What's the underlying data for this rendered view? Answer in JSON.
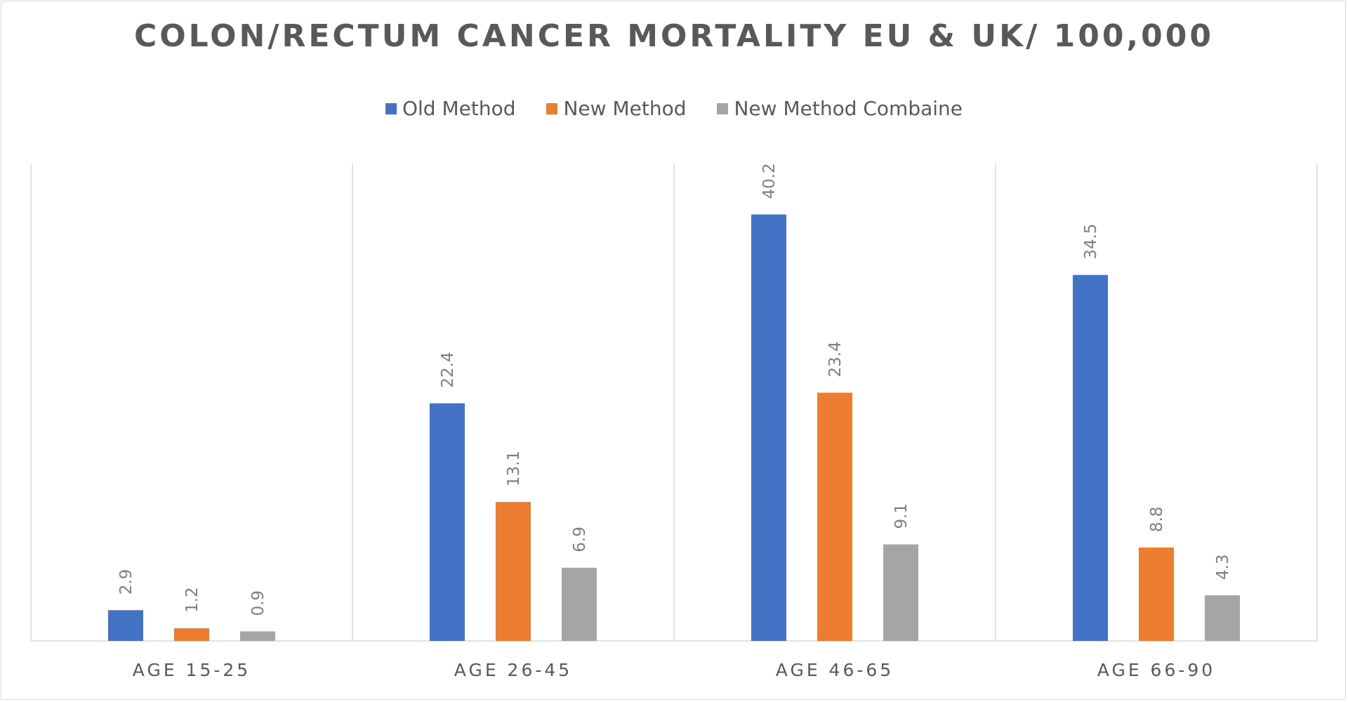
{
  "chart_data": {
    "type": "bar",
    "title": "COLON/RECTUM CANCER MORTALITY EU & UK/ 100,000",
    "categories": [
      "AGE 15-25",
      "AGE 26-45",
      "AGE 46-65",
      "AGE 66-90"
    ],
    "series": [
      {
        "name": "Old Method",
        "color": "#4472C4",
        "values": [
          2.9,
          22.4,
          40.2,
          34.5
        ]
      },
      {
        "name": "New Method",
        "color": "#ED7D31",
        "values": [
          1.2,
          13.1,
          23.4,
          8.8
        ]
      },
      {
        "name": "New Method Combaine",
        "color": "#A5A5A5",
        "values": [
          0.9,
          6.9,
          9.1,
          4.3
        ]
      }
    ],
    "ylim": [
      0,
      45
    ],
    "legend_position": "top",
    "vertical_category_gridlines": true,
    "data_labels": "rotated"
  }
}
